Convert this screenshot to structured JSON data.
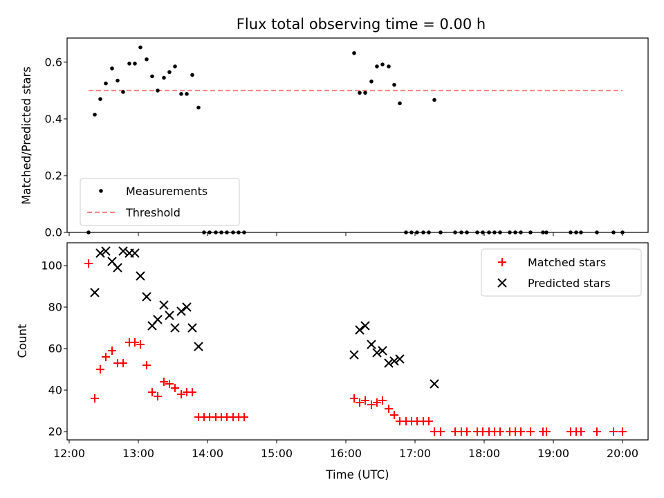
{
  "chart_data": [
    {
      "type": "scatter",
      "title": "Flux total observing time = 0.00 h",
      "xlabel": "",
      "ylabel": "Matched/Predicted stars",
      "ylim": [
        0,
        0.685
      ],
      "yticks": [
        "0.0",
        "0.2",
        "0.4",
        "0.6"
      ],
      "xlim": [
        11.97,
        20.37
      ],
      "legend": {
        "placement": "lower-left"
      },
      "series": [
        {
          "name": "Measurements",
          "marker": "dot",
          "color": "#000000",
          "points": [
            [
              12.28,
              0.0
            ],
            [
              12.37,
              0.415
            ],
            [
              12.45,
              0.47
            ],
            [
              12.53,
              0.525
            ],
            [
              12.62,
              0.578
            ],
            [
              12.7,
              0.535
            ],
            [
              12.78,
              0.495
            ],
            [
              12.87,
              0.595
            ],
            [
              12.95,
              0.595
            ],
            [
              13.03,
              0.652
            ],
            [
              13.12,
              0.61
            ],
            [
              13.2,
              0.55
            ],
            [
              13.28,
              0.5
            ],
            [
              13.37,
              0.545
            ],
            [
              13.45,
              0.565
            ],
            [
              13.53,
              0.585
            ],
            [
              13.62,
              0.488
            ],
            [
              13.7,
              0.488
            ],
            [
              13.78,
              0.555
            ],
            [
              13.87,
              0.44
            ],
            [
              13.95,
              0.0
            ],
            [
              14.03,
              0.0
            ],
            [
              14.12,
              0.0
            ],
            [
              14.2,
              0.0
            ],
            [
              14.28,
              0.0
            ],
            [
              14.37,
              0.0
            ],
            [
              14.45,
              0.0
            ],
            [
              14.53,
              0.0
            ],
            [
              16.12,
              0.632
            ],
            [
              16.2,
              0.492
            ],
            [
              16.28,
              0.492
            ],
            [
              16.37,
              0.532
            ],
            [
              16.45,
              0.585
            ],
            [
              16.53,
              0.592
            ],
            [
              16.62,
              0.585
            ],
            [
              16.7,
              0.52
            ],
            [
              16.78,
              0.455
            ],
            [
              16.87,
              0.0
            ],
            [
              16.95,
              0.0
            ],
            [
              17.03,
              0.0
            ],
            [
              17.12,
              0.0
            ],
            [
              17.2,
              0.0
            ],
            [
              17.28,
              0.467
            ],
            [
              17.37,
              0.0
            ],
            [
              17.58,
              0.0
            ],
            [
              17.67,
              0.0
            ],
            [
              17.75,
              0.0
            ],
            [
              17.9,
              0.0
            ],
            [
              17.98,
              0.0
            ],
            [
              18.07,
              0.0
            ],
            [
              18.15,
              0.0
            ],
            [
              18.23,
              0.0
            ],
            [
              18.37,
              0.0
            ],
            [
              18.45,
              0.0
            ],
            [
              18.53,
              0.0
            ],
            [
              18.67,
              0.0
            ],
            [
              18.85,
              0.0
            ],
            [
              18.9,
              0.0
            ],
            [
              19.25,
              0.0
            ],
            [
              19.33,
              0.0
            ],
            [
              19.4,
              0.0
            ],
            [
              19.63,
              0.0
            ],
            [
              19.87,
              0.0
            ],
            [
              20.0,
              0.0
            ]
          ]
        },
        {
          "name": "Threshold",
          "type": "line",
          "style": "dashed",
          "color": "#ff7f7f",
          "points": [
            [
              12.28,
              0.5
            ],
            [
              20.0,
              0.5
            ]
          ]
        }
      ]
    },
    {
      "type": "scatter",
      "title": "",
      "xlabel": "Time (UTC)",
      "ylabel": "Count",
      "ylim": [
        16,
        111
      ],
      "yticks": [
        "20",
        "40",
        "60",
        "80",
        "100"
      ],
      "xlim": [
        11.97,
        20.37
      ],
      "xticks": [
        {
          "value": 12,
          "label": "12:00"
        },
        {
          "value": 13,
          "label": "13:00"
        },
        {
          "value": 14,
          "label": "14:00"
        },
        {
          "value": 15,
          "label": "15:00"
        },
        {
          "value": 16,
          "label": "16:00"
        },
        {
          "value": 17,
          "label": "17:00"
        },
        {
          "value": 18,
          "label": "18:00"
        },
        {
          "value": 19,
          "label": "19:00"
        },
        {
          "value": 20,
          "label": "20:00"
        }
      ],
      "legend": {
        "placement": "top-right"
      },
      "series": [
        {
          "name": "Matched stars",
          "marker": "plus",
          "color": "#ff0000",
          "points": [
            [
              12.28,
              101
            ],
            [
              12.37,
              36
            ],
            [
              12.45,
              50
            ],
            [
              12.53,
              56
            ],
            [
              12.62,
              59
            ],
            [
              12.7,
              53
            ],
            [
              12.78,
              53
            ],
            [
              12.87,
              63
            ],
            [
              12.95,
              63
            ],
            [
              13.03,
              62
            ],
            [
              13.12,
              52
            ],
            [
              13.2,
              39
            ],
            [
              13.28,
              37
            ],
            [
              13.37,
              44
            ],
            [
              13.45,
              43
            ],
            [
              13.53,
              41
            ],
            [
              13.62,
              38
            ],
            [
              13.7,
              39
            ],
            [
              13.78,
              39
            ],
            [
              13.87,
              27
            ],
            [
              13.95,
              27
            ],
            [
              14.03,
              27
            ],
            [
              14.12,
              27
            ],
            [
              14.2,
              27
            ],
            [
              14.28,
              27
            ],
            [
              14.37,
              27
            ],
            [
              14.45,
              27
            ],
            [
              14.53,
              27
            ],
            [
              16.12,
              36
            ],
            [
              16.2,
              34
            ],
            [
              16.28,
              35
            ],
            [
              16.37,
              33
            ],
            [
              16.45,
              34
            ],
            [
              16.53,
              35
            ],
            [
              16.62,
              31
            ],
            [
              16.7,
              28
            ],
            [
              16.78,
              25
            ],
            [
              16.87,
              25
            ],
            [
              16.95,
              25
            ],
            [
              17.03,
              25
            ],
            [
              17.12,
              25
            ],
            [
              17.2,
              25
            ],
            [
              17.28,
              20
            ],
            [
              17.37,
              20
            ],
            [
              17.58,
              20
            ],
            [
              17.67,
              20
            ],
            [
              17.75,
              20
            ],
            [
              17.9,
              20
            ],
            [
              17.98,
              20
            ],
            [
              18.07,
              20
            ],
            [
              18.15,
              20
            ],
            [
              18.23,
              20
            ],
            [
              18.37,
              20
            ],
            [
              18.45,
              20
            ],
            [
              18.53,
              20
            ],
            [
              18.67,
              20
            ],
            [
              18.85,
              20
            ],
            [
              18.9,
              20
            ],
            [
              19.25,
              20
            ],
            [
              19.33,
              20
            ],
            [
              19.4,
              20
            ],
            [
              19.63,
              20
            ],
            [
              19.87,
              20
            ],
            [
              20.0,
              20
            ]
          ]
        },
        {
          "name": "Predicted stars",
          "marker": "x",
          "color": "#000000",
          "points": [
            [
              12.37,
              87
            ],
            [
              12.45,
              106
            ],
            [
              12.53,
              107
            ],
            [
              12.62,
              102
            ],
            [
              12.7,
              99
            ],
            [
              12.78,
              107
            ],
            [
              12.87,
              106
            ],
            [
              12.95,
              106
            ],
            [
              13.03,
              95
            ],
            [
              13.12,
              85
            ],
            [
              13.2,
              71
            ],
            [
              13.28,
              74
            ],
            [
              13.37,
              81
            ],
            [
              13.45,
              76
            ],
            [
              13.53,
              70
            ],
            [
              13.62,
              78
            ],
            [
              13.7,
              80
            ],
            [
              13.78,
              70
            ],
            [
              13.87,
              61
            ],
            [
              16.12,
              57
            ],
            [
              16.2,
              69
            ],
            [
              16.28,
              71
            ],
            [
              16.37,
              62
            ],
            [
              16.45,
              58
            ],
            [
              16.53,
              59
            ],
            [
              16.62,
              53
            ],
            [
              16.7,
              54
            ],
            [
              16.78,
              55
            ],
            [
              17.28,
              43
            ]
          ]
        }
      ]
    }
  ]
}
